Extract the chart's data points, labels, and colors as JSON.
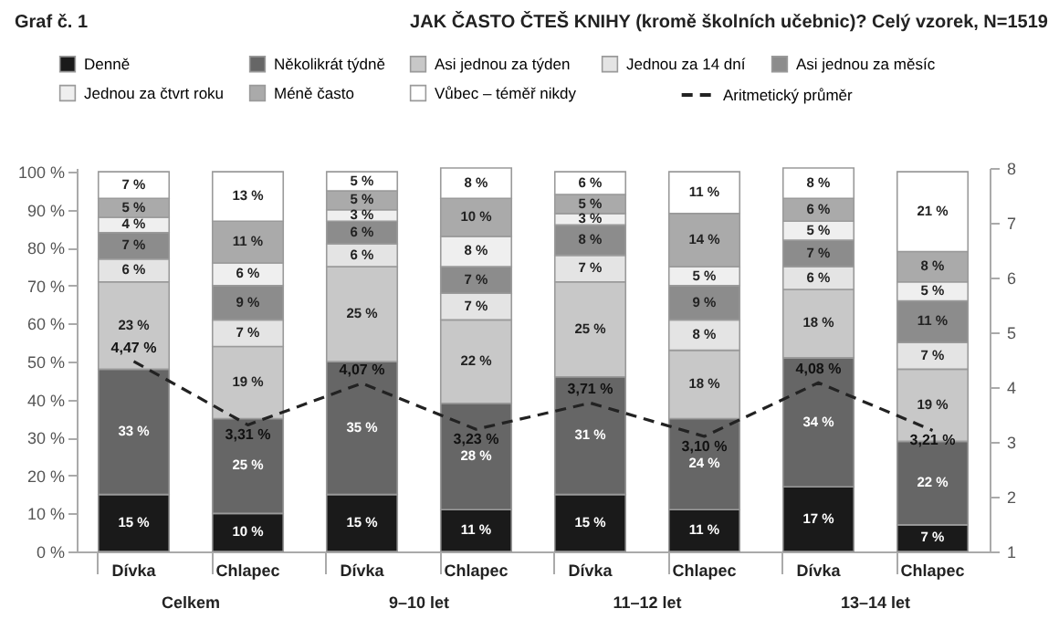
{
  "chart_data": {
    "type": "bar",
    "stacked": true,
    "title": "JAK ČASTO ČTEŠ KNIHY (kromě školních učebnic)? Celý vzorek, N=1519",
    "subtitle": "Graf č. 1",
    "categories": [
      "Dívka",
      "Chlapec",
      "Dívka",
      "Chlapec",
      "Dívka",
      "Chlapec",
      "Dívka",
      "Chlapec"
    ],
    "annotations": [
      "Celkem",
      "9–10 let",
      "11–12 let",
      "13–14 let"
    ],
    "series": [
      {
        "name": "Denně",
        "color": "#1a1a1a",
        "values": [
          15,
          10,
          15,
          11,
          15,
          11,
          17,
          7
        ],
        "value_labels": [
          "15 %",
          "10 %",
          "15 %",
          "11 %",
          "15 %",
          "11 %",
          "17 %",
          "7 %"
        ]
      },
      {
        "name": "Několikrát týdně",
        "color": "#666666",
        "values": [
          33,
          25,
          35,
          28,
          31,
          24,
          34,
          22
        ],
        "value_labels": [
          "33 %",
          "25 %",
          "35 %",
          "28 %",
          "31 %",
          "24 %",
          "34 %",
          "22 %"
        ]
      },
      {
        "name": "Asi jednou za týden",
        "color": "#c8c8c8",
        "values": [
          23,
          19,
          25,
          22,
          25,
          18,
          18,
          19
        ],
        "value_labels": [
          "23 %",
          "19 %",
          "25 %",
          "22 %",
          "25 %",
          "18 %",
          "18 %",
          "19 %"
        ]
      },
      {
        "name": "Jednou za 14 dní",
        "color": "#e4e4e4",
        "values": [
          6,
          7,
          6,
          7,
          7,
          8,
          6,
          7
        ],
        "value_labels": [
          "6 %",
          "7 %",
          "6 %",
          "7 %",
          "7 %",
          "8 %",
          "6 %",
          "7 %"
        ]
      },
      {
        "name": "Asi jednou za měsíc",
        "color": "#8c8c8c",
        "values": [
          7,
          9,
          6,
          7,
          8,
          9,
          7,
          11
        ],
        "value_labels": [
          "7 %",
          "9 %",
          "6 %",
          "7 %",
          "8 %",
          "9 %",
          "7 %",
          "11 %"
        ]
      },
      {
        "name": "Jednou za čtvrt roku",
        "color": "#efefef",
        "values": [
          4,
          6,
          3,
          8,
          3,
          5,
          5,
          5
        ],
        "value_labels": [
          "4 %",
          "6 %",
          "3 %",
          "8 %",
          "3 %",
          "5 %",
          "5 %",
          "5 %"
        ]
      },
      {
        "name": "Méně často",
        "color": "#aaaaaa",
        "values": [
          5,
          11,
          5,
          10,
          5,
          14,
          6,
          8
        ],
        "value_labels": [
          "5 %",
          "11 %",
          "5 %",
          "10 %",
          "5 %",
          "14 %",
          "6 %",
          "8 %"
        ]
      },
      {
        "name": "Vůbec – téměř nikdy",
        "color": "#ffffff",
        "values": [
          7,
          13,
          5,
          8,
          6,
          11,
          8,
          21
        ],
        "value_labels": [
          "7 %",
          "13 %",
          "5 %",
          "8 %",
          "6 %",
          "11 %",
          "8 %",
          "21 %"
        ]
      },
      {
        "name": "Aritmetický průměr",
        "type": "line",
        "axis": "y2",
        "line_style": "dashed",
        "color": "#222222",
        "values": [
          4.47,
          3.31,
          4.07,
          3.23,
          3.71,
          3.1,
          4.08,
          3.21
        ],
        "value_labels": [
          "4,47 %",
          "3,31 %",
          "4,07 %",
          "3,23 %",
          "3,71 %",
          "3,10 %",
          "4,08 %",
          "3,21 %"
        ]
      }
    ],
    "ylim": [
      0,
      101
    ],
    "yticks": [
      {
        "value": 0,
        "label": "0 %"
      },
      {
        "value": 10,
        "label": "10 %"
      },
      {
        "value": 20,
        "label": "20 %"
      },
      {
        "value": 30,
        "label": "30 %"
      },
      {
        "value": 40,
        "label": "40 %"
      },
      {
        "value": 50,
        "label": "50 %"
      },
      {
        "value": 60,
        "label": "60 %"
      },
      {
        "value": 70,
        "label": "70 %"
      },
      {
        "value": 80,
        "label": "80 %"
      },
      {
        "value": 90,
        "label": "90 %"
      },
      {
        "value": 100,
        "label": "100 %"
      }
    ],
    "y2lim": [
      1,
      8
    ],
    "y2ticks": [
      1,
      2,
      3,
      4,
      5,
      6,
      7,
      8
    ],
    "legend": "top",
    "grid": false
  }
}
